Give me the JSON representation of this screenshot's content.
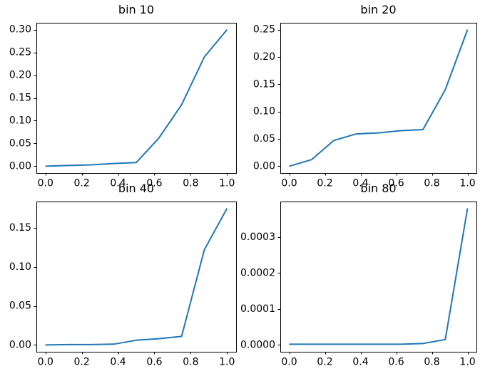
{
  "figure": {
    "background": "#ffffff",
    "line_color": "#1f77b4",
    "axes_color": "#000000"
  },
  "chart_data": [
    {
      "type": "line",
      "title": "bin 10",
      "color": "#1f77b4",
      "x": [
        0.0,
        0.125,
        0.25,
        0.375,
        0.5,
        0.625,
        0.75,
        0.875,
        1.0
      ],
      "y": [
        0.0,
        0.0015,
        0.003,
        0.006,
        0.008,
        0.062,
        0.135,
        0.24,
        0.3
      ],
      "xlim": [
        -0.05,
        1.05
      ],
      "ylim": [
        -0.015,
        0.315
      ],
      "xticks": [
        0.0,
        0.2,
        0.4,
        0.6,
        0.8,
        1.0
      ],
      "xtick_labels": [
        "0.0",
        "0.2",
        "0.4",
        "0.6",
        "0.8",
        "1.0"
      ],
      "yticks": [
        0.0,
        0.05,
        0.1,
        0.15,
        0.2,
        0.25,
        0.3
      ],
      "ytick_labels": [
        "0.00",
        "0.05",
        "0.10",
        "0.15",
        "0.20",
        "0.25",
        "0.30"
      ],
      "grid": false,
      "legend": null
    },
    {
      "type": "line",
      "title": "bin 20",
      "color": "#1f77b4",
      "x": [
        0.0,
        0.125,
        0.25,
        0.375,
        0.5,
        0.625,
        0.75,
        0.875,
        1.0
      ],
      "y": [
        0.0,
        0.012,
        0.047,
        0.059,
        0.061,
        0.065,
        0.067,
        0.14,
        0.25
      ],
      "xlim": [
        -0.05,
        1.05
      ],
      "ylim": [
        -0.0125,
        0.2625
      ],
      "xticks": [
        0.0,
        0.2,
        0.4,
        0.6,
        0.8,
        1.0
      ],
      "xtick_labels": [
        "0.0",
        "0.2",
        "0.4",
        "0.6",
        "0.8",
        "1.0"
      ],
      "yticks": [
        0.0,
        0.05,
        0.1,
        0.15,
        0.2,
        0.25
      ],
      "ytick_labels": [
        "0.00",
        "0.05",
        "0.10",
        "0.15",
        "0.20",
        "0.25"
      ],
      "grid": false,
      "legend": null
    },
    {
      "type": "line",
      "title": "bin 40",
      "color": "#1f77b4",
      "x": [
        0.0,
        0.125,
        0.25,
        0.375,
        0.5,
        0.625,
        0.75,
        0.875,
        1.0
      ],
      "y": [
        0.0,
        0.0005,
        0.0005,
        0.001,
        0.006,
        0.008,
        0.011,
        0.122,
        0.175
      ],
      "xlim": [
        -0.05,
        1.05
      ],
      "ylim": [
        -0.00875,
        0.18375
      ],
      "xticks": [
        0.0,
        0.2,
        0.4,
        0.6,
        0.8,
        1.0
      ],
      "xtick_labels": [
        "0.0",
        "0.2",
        "0.4",
        "0.6",
        "0.8",
        "1.0"
      ],
      "yticks": [
        0.0,
        0.05,
        0.1,
        0.15
      ],
      "ytick_labels": [
        "0.00",
        "0.05",
        "0.10",
        "0.15"
      ],
      "grid": false,
      "legend": null
    },
    {
      "type": "line",
      "title": "bin 80",
      "color": "#1f77b4",
      "x": [
        0.0,
        0.125,
        0.25,
        0.375,
        0.5,
        0.625,
        0.75,
        0.875,
        1.0
      ],
      "y": [
        2e-06,
        2e-06,
        2e-06,
        2e-06,
        2e-06,
        2e-06,
        4e-06,
        1.5e-05,
        0.00038
      ],
      "xlim": [
        -0.05,
        1.05
      ],
      "ylim": [
        -1.9e-05,
        0.000399
      ],
      "xticks": [
        0.0,
        0.2,
        0.4,
        0.6,
        0.8,
        1.0
      ],
      "xtick_labels": [
        "0.0",
        "0.2",
        "0.4",
        "0.6",
        "0.8",
        "1.0"
      ],
      "yticks": [
        0.0,
        0.0001,
        0.0002,
        0.0003
      ],
      "ytick_labels": [
        "0.0000",
        "0.0001",
        "0.0002",
        "0.0003"
      ],
      "grid": false,
      "legend": null
    }
  ]
}
